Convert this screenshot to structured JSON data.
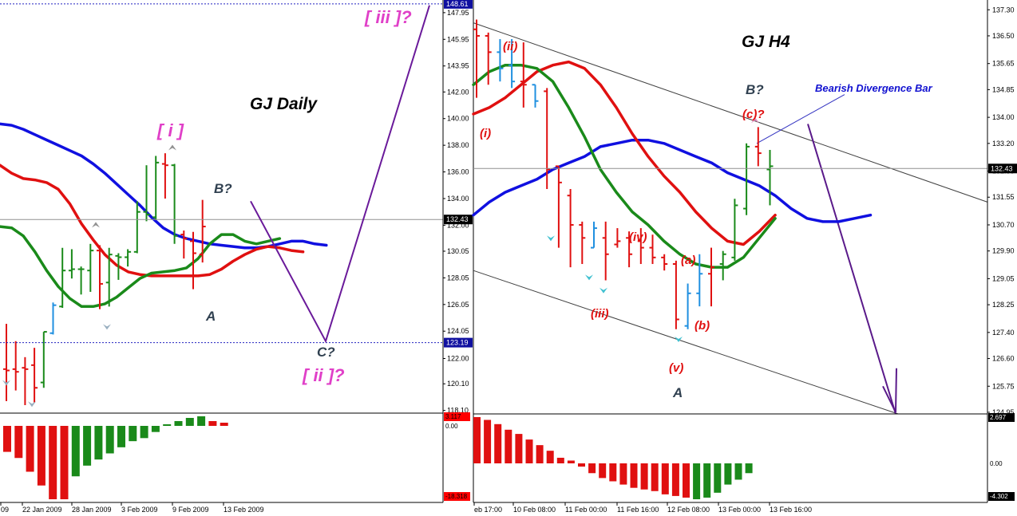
{
  "chart_data": [
    {
      "type": "ohlc",
      "title": "GJ Daily",
      "price_axis": {
        "ticks": [
          "147.95",
          "145.95",
          "143.95",
          "142.00",
          "140.00",
          "138.00",
          "136.00",
          "134.00",
          "132.00",
          "130.05",
          "128.05",
          "126.05",
          "124.05",
          "122.00",
          "120.10",
          "118.10"
        ],
        "range": [
          117.9,
          148.9
        ],
        "current_price": "132.43",
        "level_high": "148.61",
        "level_low": "123.19"
      },
      "x_ticks": [
        "09",
        "22 Jan 2009",
        "28 Jan 2009",
        "3 Feb 2009",
        "9 Feb 2009",
        "13 Feb 2009"
      ],
      "bars": [
        {
          "o": 121.2,
          "h": 124.6,
          "l": 118.8,
          "c": 121.1,
          "color": "red"
        },
        {
          "o": 121.2,
          "h": 123.3,
          "l": 119.6,
          "c": 121.0,
          "color": "red"
        },
        {
          "o": 121.3,
          "h": 122.1,
          "l": 118.5,
          "c": 121.2,
          "color": "red"
        },
        {
          "o": 121.5,
          "h": 122.8,
          "l": 118.7,
          "c": 119.8,
          "color": "red"
        },
        {
          "o": 120.2,
          "h": 124.0,
          "l": 119.8,
          "c": 124.0,
          "color": "green"
        },
        {
          "o": 123.9,
          "h": 126.2,
          "l": 123.8,
          "c": 126.0,
          "color": "blue"
        },
        {
          "o": 125.9,
          "h": 130.3,
          "l": 125.8,
          "c": 128.6,
          "color": "green"
        },
        {
          "o": 128.6,
          "h": 130.2,
          "l": 128.0,
          "c": 128.7,
          "color": "green"
        },
        {
          "o": 128.7,
          "h": 128.9,
          "l": 126.8,
          "c": 128.7,
          "color": "green"
        },
        {
          "o": 128.6,
          "h": 130.6,
          "l": 127.0,
          "c": 130.1,
          "color": "green"
        },
        {
          "o": 130.1,
          "h": 130.5,
          "l": 125.7,
          "c": 127.6,
          "color": "red"
        },
        {
          "o": 127.7,
          "h": 130.3,
          "l": 125.9,
          "c": 129.8,
          "color": "green"
        },
        {
          "o": 129.7,
          "h": 129.9,
          "l": 127.9,
          "c": 129.6,
          "color": "green"
        },
        {
          "o": 129.6,
          "h": 130.2,
          "l": 128.9,
          "c": 130.0,
          "color": "green"
        },
        {
          "o": 130.0,
          "h": 133.8,
          "l": 129.9,
          "c": 133.0,
          "color": "green"
        },
        {
          "o": 133.0,
          "h": 136.5,
          "l": 132.3,
          "c": 132.8,
          "color": "green"
        },
        {
          "o": 132.6,
          "h": 137.2,
          "l": 132.4,
          "c": 136.7,
          "color": "green"
        },
        {
          "o": 136.6,
          "h": 137.4,
          "l": 134.0,
          "c": 136.5,
          "color": "red"
        },
        {
          "o": 136.5,
          "h": 136.6,
          "l": 130.6,
          "c": 131.2,
          "color": "green"
        },
        {
          "o": 131.3,
          "h": 131.6,
          "l": 129.5,
          "c": 131.0,
          "color": "red"
        },
        {
          "o": 130.8,
          "h": 131.5,
          "l": 127.2,
          "c": 129.9,
          "color": "red"
        },
        {
          "o": 129.8,
          "h": 133.9,
          "l": 129.2,
          "c": 131.9,
          "color": "red"
        }
      ],
      "moving_averages": [
        {
          "color": "#1010e0",
          "values": [
            139.6,
            139.5,
            139.2,
            138.8,
            138.4,
            138.0,
            137.6,
            137.2,
            136.6,
            135.9,
            135.1,
            134.3,
            133.5,
            132.6,
            131.8,
            131.3,
            131.0,
            130.8,
            130.6,
            130.5,
            130.4,
            130.3,
            130.3,
            130.4,
            130.6,
            130.8,
            130.8,
            130.6,
            130.5
          ]
        },
        {
          "color": "#e01010",
          "values": [
            136.5,
            135.9,
            135.5,
            135.4,
            135.2,
            134.7,
            133.6,
            132.1,
            130.9,
            129.8,
            129.0,
            128.5,
            128.3,
            128.2,
            128.2,
            128.2,
            128.2,
            128.2,
            128.3,
            128.7,
            129.3,
            129.8,
            130.2,
            130.4,
            130.3,
            130.1,
            130.0
          ]
        },
        {
          "color": "#1a8a1a",
          "values": [
            131.9,
            131.8,
            131.2,
            130.0,
            128.6,
            127.4,
            126.5,
            125.9,
            125.9,
            126.1,
            126.6,
            127.3,
            128.0,
            128.4,
            128.5,
            128.6,
            128.8,
            129.5,
            130.6,
            131.3,
            131.3,
            130.8,
            130.6,
            130.8,
            131.0
          ]
        }
      ],
      "wave_path": [
        [
          126.6,
          123.9
        ],
        [
          132.3,
          122.6
        ],
        [
          147.9,
          127.0
        ]
      ],
      "annotations": [
        {
          "text": "GJ Daily",
          "color": "#000000"
        },
        {
          "text": "[ i ]",
          "color": "#e040c8"
        },
        {
          "text": "B?",
          "color": "#304050"
        },
        {
          "text": "A",
          "color": "#304050"
        },
        {
          "text": "C?",
          "color": "#304050"
        },
        {
          "text": "[ ii ]?",
          "color": "#e040c8"
        },
        {
          "text": "[ iii ]?",
          "color": "#e040c8"
        }
      ],
      "oscillator": {
        "top_label": "3.117",
        "zero_label": "0.00",
        "bottom_label": "-18.318",
        "bars": [
          -8.5,
          -10.5,
          -15.0,
          -19.5,
          -24.0,
          -24.0,
          -16.5,
          -13.0,
          -11.0,
          -9.0,
          -7.0,
          -5.0,
          -4.0,
          -2.0,
          0.5,
          1.5,
          2.5,
          3.0,
          1.5,
          1.0
        ],
        "colors": [
          "red",
          "red",
          "red",
          "red",
          "red",
          "red",
          "green",
          "green",
          "green",
          "green",
          "green",
          "green",
          "green",
          "green",
          "green",
          "green",
          "green",
          "green",
          "red",
          "red"
        ]
      }
    },
    {
      "type": "ohlc",
      "title": "GJ H4",
      "price_axis": {
        "ticks": [
          "137.30",
          "136.50",
          "135.65",
          "134.85",
          "134.00",
          "133.20",
          "132.35",
          "131.55",
          "130.70",
          "129.90",
          "129.05",
          "128.25",
          "127.40",
          "126.60",
          "125.75",
          "124.95"
        ],
        "range": [
          124.9,
          137.6
        ],
        "current_price": "132.43"
      },
      "x_ticks": [
        "eb 17:00",
        "10 Feb 08:00",
        "11 Feb 00:00",
        "11 Feb 16:00",
        "12 Feb 08:00",
        "13 Feb 00:00",
        "13 Feb 16:00"
      ],
      "bars": [
        {
          "o": 136.7,
          "h": 137.0,
          "l": 134.6,
          "c": 136.5,
          "color": "red"
        },
        {
          "o": 136.5,
          "h": 136.6,
          "l": 135.0,
          "c": 136.0,
          "color": "red"
        },
        {
          "o": 136.0,
          "h": 136.4,
          "l": 135.1,
          "c": 135.5,
          "color": "blue"
        },
        {
          "o": 135.6,
          "h": 136.4,
          "l": 134.9,
          "c": 135.1,
          "color": "blue"
        },
        {
          "o": 135.1,
          "h": 136.3,
          "l": 134.3,
          "c": 135.0,
          "color": "red"
        },
        {
          "o": 135.0,
          "h": 135.0,
          "l": 134.3,
          "c": 134.5,
          "color": "blue"
        },
        {
          "o": 134.8,
          "h": 134.9,
          "l": 131.8,
          "c": 132.4,
          "color": "red"
        },
        {
          "o": 132.5,
          "h": 132.5,
          "l": 130.0,
          "c": 132.0,
          "color": "red"
        },
        {
          "o": 131.6,
          "h": 131.8,
          "l": 129.4,
          "c": 130.7,
          "color": "red"
        },
        {
          "o": 130.7,
          "h": 130.8,
          "l": 129.5,
          "c": 130.3,
          "color": "red"
        },
        {
          "o": 130.0,
          "h": 130.8,
          "l": 130.0,
          "c": 130.6,
          "color": "blue"
        },
        {
          "o": 130.3,
          "h": 130.8,
          "l": 129.0,
          "c": 129.8,
          "color": "red"
        },
        {
          "o": 130.1,
          "h": 130.6,
          "l": 130.0,
          "c": 130.2,
          "color": "red"
        },
        {
          "o": 130.3,
          "h": 130.5,
          "l": 129.4,
          "c": 129.8,
          "color": "red"
        },
        {
          "o": 130.2,
          "h": 130.6,
          "l": 129.5,
          "c": 130.0,
          "color": "red"
        },
        {
          "o": 130.0,
          "h": 130.4,
          "l": 129.5,
          "c": 129.7,
          "color": "red"
        },
        {
          "o": 129.7,
          "h": 129.8,
          "l": 129.3,
          "c": 129.5,
          "color": "red"
        },
        {
          "o": 129.5,
          "h": 129.6,
          "l": 127.5,
          "c": 127.8,
          "color": "red"
        },
        {
          "o": 127.6,
          "h": 128.9,
          "l": 127.5,
          "c": 128.6,
          "color": "blue"
        },
        {
          "o": 128.6,
          "h": 129.8,
          "l": 128.2,
          "c": 129.2,
          "color": "blue"
        },
        {
          "o": 129.2,
          "h": 130.0,
          "l": 128.2,
          "c": 129.4,
          "color": "red"
        },
        {
          "o": 129.5,
          "h": 129.9,
          "l": 129.0,
          "c": 129.8,
          "color": "green"
        },
        {
          "o": 129.7,
          "h": 131.5,
          "l": 129.6,
          "c": 131.3,
          "color": "green"
        },
        {
          "o": 131.2,
          "h": 133.2,
          "l": 131.0,
          "c": 133.1,
          "color": "green"
        },
        {
          "o": 133.1,
          "h": 133.7,
          "l": 132.5,
          "c": 132.9,
          "color": "red"
        },
        {
          "o": 132.4,
          "h": 133.0,
          "l": 131.3,
          "c": 132.5,
          "color": "green"
        }
      ],
      "moving_averages": [
        {
          "color": "#1010e0",
          "values": [
            131.0,
            131.4,
            131.7,
            131.9,
            132.1,
            132.4,
            132.6,
            132.8,
            133.1,
            133.2,
            133.3,
            133.3,
            133.2,
            133.0,
            132.8,
            132.6,
            132.3,
            132.1,
            131.9,
            131.6,
            131.2,
            130.9,
            130.8,
            130.8,
            130.9,
            131.0
          ]
        },
        {
          "color": "#e01010",
          "values": [
            134.1,
            134.3,
            134.6,
            135.0,
            135.4,
            135.6,
            135.7,
            135.5,
            135.0,
            134.3,
            133.5,
            132.8,
            132.2,
            131.7,
            131.1,
            130.6,
            130.2,
            130.1,
            130.5,
            131.0
          ]
        },
        {
          "color": "#1a8a1a",
          "values": [
            135.0,
            135.4,
            135.6,
            135.6,
            135.5,
            135.1,
            134.3,
            133.4,
            132.4,
            131.7,
            131.1,
            130.7,
            130.2,
            129.8,
            129.5,
            129.4,
            129.4,
            129.7,
            130.3,
            130.9
          ]
        }
      ],
      "channel": {
        "upper": [
          136.9,
          131.4
        ],
        "lower": [
          129.3,
          124.9
        ],
        "mid_projection": [
          132.5,
          124.9
        ]
      },
      "divergence_line": {
        "from": 133.2,
        "to": 134.7
      },
      "annotations": [
        {
          "text": "GJ H4",
          "color": "#000000"
        },
        {
          "text": "Bearish Divergence Bar",
          "color": "#1010d0"
        },
        {
          "text": "B?",
          "color": "#304050"
        },
        {
          "text": "(c)?",
          "color": "#e01010"
        },
        {
          "text": "(ii)",
          "color": "#e01010"
        },
        {
          "text": "(i)",
          "color": "#e01010"
        },
        {
          "text": "(iv)",
          "color": "#e01010"
        },
        {
          "text": "(iii)",
          "color": "#e01010"
        },
        {
          "text": "(a)",
          "color": "#e01010"
        },
        {
          "text": "(b)",
          "color": "#e01010"
        },
        {
          "text": "(v)",
          "color": "#e01010"
        },
        {
          "text": "A",
          "color": "#304050"
        }
      ],
      "oscillator": {
        "top_label": "2.697",
        "zero_label": "0.00",
        "bottom_label": "-4.302",
        "bars": [
          3.3,
          3.1,
          2.8,
          2.4,
          2.1,
          1.7,
          1.3,
          0.9,
          0.4,
          0.2,
          -0.2,
          -0.6,
          -0.9,
          -1.1,
          -1.3,
          -1.5,
          -1.6,
          -1.7,
          -1.9,
          -2.0,
          -2.1,
          -2.2,
          -2.1,
          -1.8,
          -1.3,
          -1.0,
          -0.6
        ],
        "colors": [
          "red",
          "red",
          "red",
          "red",
          "red",
          "red",
          "red",
          "red",
          "red",
          "red",
          "red",
          "red",
          "red",
          "red",
          "red",
          "red",
          "red",
          "red",
          "red",
          "red",
          "red",
          "green",
          "green",
          "green",
          "green",
          "green",
          "green"
        ]
      }
    }
  ]
}
